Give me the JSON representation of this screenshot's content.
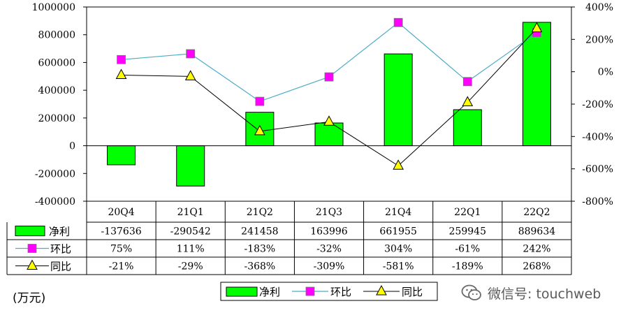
{
  "chart_data": {
    "type": "bar",
    "categories": [
      "20Q4",
      "21Q1",
      "21Q2",
      "21Q3",
      "21Q4",
      "22Q1",
      "22Q2"
    ],
    "unit": "(万元)",
    "y_left": {
      "ylim": [
        -400000,
        1000000
      ],
      "ticks": [
        "1000000",
        "800000",
        "600000",
        "400000",
        "200000",
        "0",
        "-200000",
        "-400000"
      ],
      "tick_values": [
        1000000,
        800000,
        600000,
        400000,
        200000,
        0,
        -200000,
        -400000
      ]
    },
    "y_right": {
      "ylim": [
        -800,
        400
      ],
      "ticks": [
        "400%",
        "200%",
        "0%",
        "-200%",
        "-400%",
        "-600%",
        "-800%"
      ],
      "tick_values": [
        400,
        200,
        0,
        -200,
        -400,
        -600,
        -800
      ]
    },
    "series": [
      {
        "name": "净利",
        "type": "bar",
        "axis": "left",
        "color": "#00ff00",
        "values": [
          -137636,
          -290542,
          241458,
          163996,
          661955,
          259945,
          889634
        ],
        "labels": [
          "-137636",
          "-290542",
          "241458",
          "163996",
          "661955",
          "259945",
          "889634"
        ]
      },
      {
        "name": "环比",
        "type": "line",
        "axis": "right",
        "color": "#4bacc6",
        "marker_color": "#ff00ff",
        "values": [
          75,
          111,
          -183,
          -32,
          304,
          -61,
          242
        ],
        "labels": [
          "75%",
          "111%",
          "-183%",
          "-32%",
          "304%",
          "-61%",
          "242%"
        ]
      },
      {
        "name": "同比",
        "type": "line",
        "axis": "right",
        "color": "#000000",
        "marker_color": "#ffff00",
        "values": [
          -21,
          -29,
          -368,
          -309,
          -581,
          -189,
          268
        ],
        "labels": [
          "-21%",
          "-29%",
          "-368%",
          "-309%",
          "-581%",
          "-189%",
          "268%"
        ]
      }
    ],
    "legend": "bottom"
  },
  "watermark": {
    "icon": "wechat-icon",
    "text": "微信号: touchweb"
  }
}
